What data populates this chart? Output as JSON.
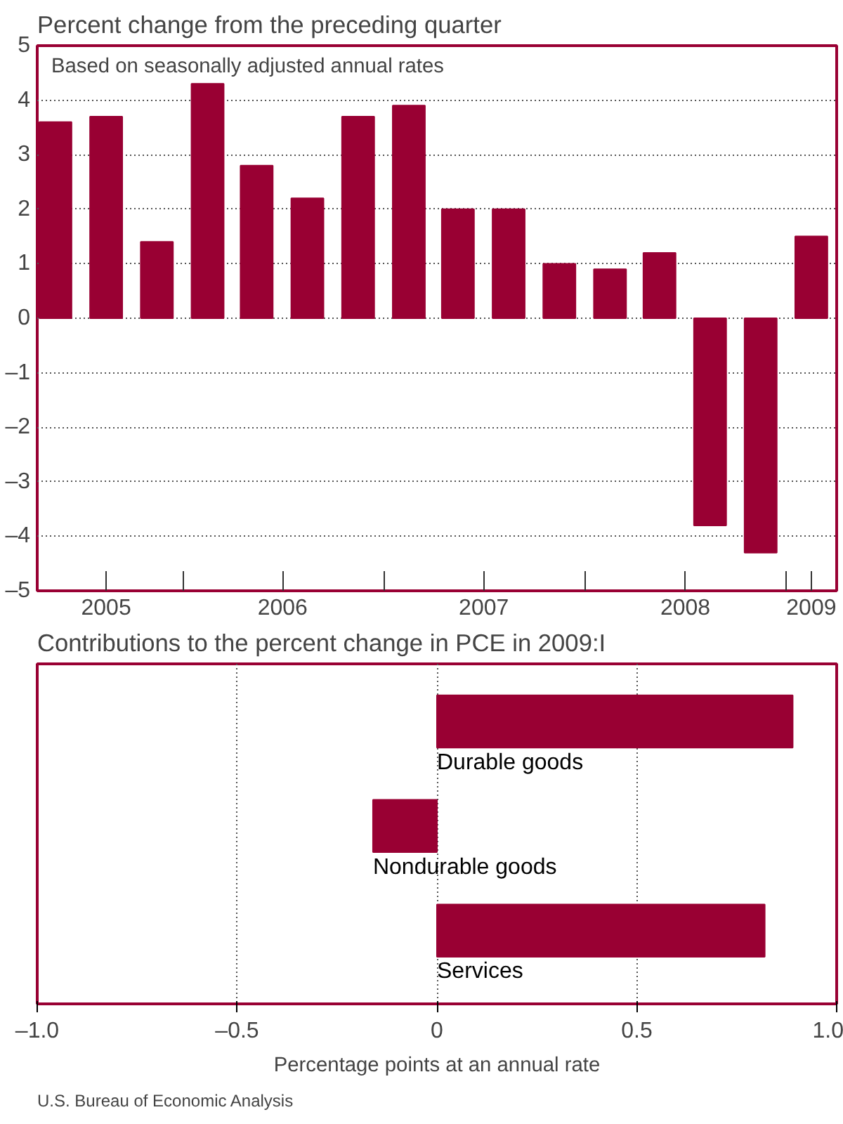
{
  "chart_data": [
    {
      "type": "bar",
      "title": "Percent change from the preceding quarter",
      "annotations": [
        "Based on seasonally adjusted annual rates"
      ],
      "x": [
        "2005-05-15",
        "2005-08-15",
        "2005-11-15",
        "2006-02-15",
        "2006-05-15",
        "2006-08-15",
        "2006-11-15",
        "2007-02-15",
        "2007-05-15",
        "2007-08-15",
        "2007-11-15",
        "2008-02-15",
        "2008-05-15",
        "2008-08-15",
        "2008-11-15",
        "2009-02-15"
      ],
      "values": [
        3.6,
        3.7,
        1.4,
        4.3,
        2.8,
        2.2,
        3.7,
        3.9,
        2.0,
        2.0,
        1.0,
        0.9,
        1.2,
        -3.8,
        -4.3,
        1.5
      ],
      "color": "#990033",
      "xlim": [
        "2005-04-12",
        "2009-04-02"
      ],
      "xticks": [
        {
          "value": "2005-08-15",
          "label": "2005"
        },
        {
          "value": "2006-01-01",
          "label": null
        },
        {
          "value": "2006-07-01",
          "label": "2006"
        },
        {
          "value": "2007-01-01",
          "label": null
        },
        {
          "value": "2007-07-01",
          "label": "2007"
        },
        {
          "value": "2008-01-01",
          "label": null
        },
        {
          "value": "2008-07-01",
          "label": "2008"
        },
        {
          "value": "2009-01-01",
          "label": null
        },
        {
          "value": "2009-02-15",
          "label": "2009"
        }
      ],
      "ylim": [
        -5,
        5
      ],
      "yticks": [
        {
          "value": -5,
          "label": "–5"
        },
        {
          "value": -4,
          "label": "–4"
        },
        {
          "value": -3,
          "label": "–3"
        },
        {
          "value": -2,
          "label": "–2"
        },
        {
          "value": -1,
          "label": "–1"
        },
        0,
        1,
        2,
        3,
        4,
        5
      ],
      "grid": "y"
    },
    {
      "type": "bar",
      "orientation": "horizontal",
      "title": "Contributions to the percent change in PCE in 2009:I",
      "xlabel": "Percentage points at an annual rate",
      "categories": [
        "Durable goods",
        "Nondurable goods",
        "Services"
      ],
      "values": [
        0.89,
        -0.16,
        0.82
      ],
      "color": "#990033",
      "xlim": [
        -1,
        1
      ],
      "xticks": [
        {
          "value": -1,
          "label": "–1.0"
        },
        {
          "value": -0.5,
          "label": "–0.5"
        },
        0,
        0.5,
        {
          "value": 1,
          "label": "1.0"
        }
      ],
      "grid": "x",
      "annotations": [
        "U.S. Bureau of Economic Analysis"
      ]
    }
  ]
}
